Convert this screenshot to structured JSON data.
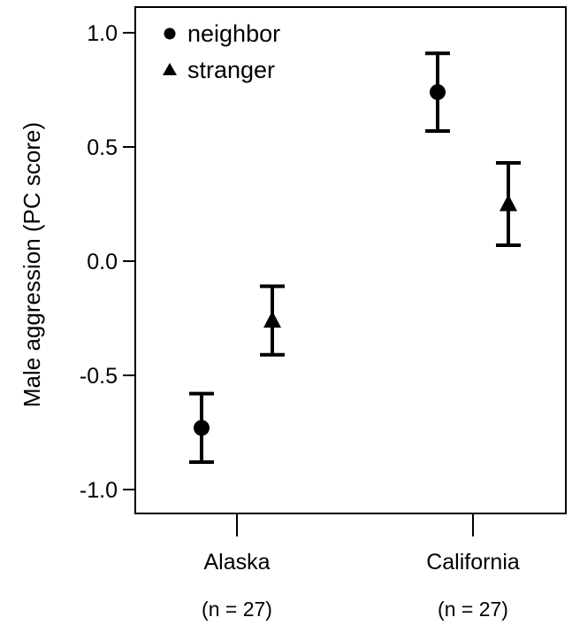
{
  "chart_data": {
    "type": "scatter",
    "ylabel": "Male aggression (PC score)",
    "xlabel": "",
    "ylim": [
      -1.15,
      1.1
    ],
    "yticks": [
      1.0,
      0.5,
      0.0,
      -0.5,
      -1.0
    ],
    "ytick_labels": [
      "1.0",
      "0.5",
      "0.0",
      "-0.5",
      "-1.0"
    ],
    "categories": [
      "Alaska",
      "California"
    ],
    "category_notes": [
      "(n = 27)",
      "(n = 27)"
    ],
    "legend_position": "top-left",
    "grid": false,
    "error_bars": true,
    "series": [
      {
        "name": "neighbor",
        "marker": "circle",
        "values": [
          -0.73,
          0.74
        ],
        "lower": [
          -0.88,
          0.57
        ],
        "upper": [
          -0.58,
          0.91
        ]
      },
      {
        "name": "stranger",
        "marker": "triangle",
        "values": [
          -0.26,
          0.25
        ],
        "lower": [
          -0.41,
          0.07
        ],
        "upper": [
          -0.11,
          0.43
        ]
      }
    ]
  }
}
